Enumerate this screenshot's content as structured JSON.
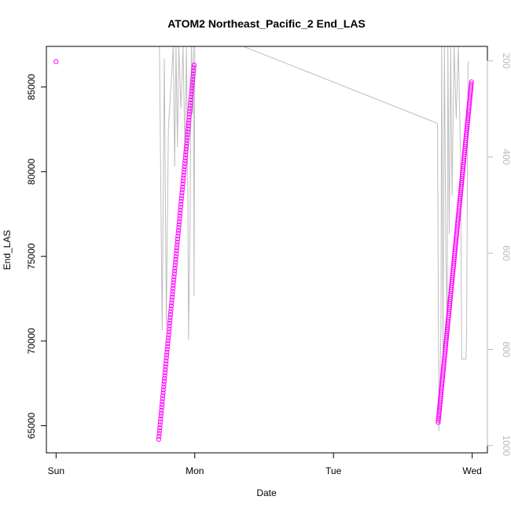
{
  "chart_data": {
    "type": "scatter",
    "title": "ATOM2 Northeast_Pacific_2 End_LAS",
    "xlabel": "Date",
    "ylabel": "End_LAS",
    "x_ticks": [
      "Sun",
      "Mon",
      "Tue",
      "Wed"
    ],
    "xlim_days": [
      -0.07,
      3.11
    ],
    "ylim": [
      63400,
      87400
    ],
    "y_ticks": [
      65000,
      70000,
      75000,
      80000,
      85000
    ],
    "y2_ticks": [
      200,
      400,
      600,
      800,
      1000
    ],
    "y2lim": [
      170,
      1015
    ],
    "grid": false,
    "colors": {
      "points": "#ff00ff",
      "secondary_line": "#bebebe",
      "axes": "#000000",
      "secondary_axis": "#b8b8b8"
    },
    "series": [
      {
        "kind": "points",
        "axis": "left",
        "segments": [
          {
            "x_start": 0.0,
            "x_end": 0.0,
            "y_start": 86500,
            "y_end": 86500,
            "n": 1
          },
          {
            "x_start": 0.74,
            "x_end": 0.995,
            "y_start": 64200,
            "y_end": 86300,
            "n": 130
          },
          {
            "x_start": 2.755,
            "x_end": 2.995,
            "y_start": 65200,
            "y_end": 85300,
            "n": 170
          }
        ]
      },
      {
        "kind": "line",
        "axis": "right",
        "points": [
          [
            0.745,
            170
          ],
          [
            0.765,
            760
          ],
          [
            0.78,
            195
          ],
          [
            0.795,
            750
          ],
          [
            0.81,
            340
          ],
          [
            0.845,
            170
          ],
          [
            0.855,
            420
          ],
          [
            0.865,
            170
          ],
          [
            0.875,
            380
          ],
          [
            0.885,
            170
          ],
          [
            0.9,
            300
          ],
          [
            0.915,
            170
          ],
          [
            0.93,
            400
          ],
          [
            0.94,
            170
          ],
          [
            0.95,
            470
          ],
          [
            0.955,
            780
          ],
          [
            0.965,
            550
          ],
          [
            0.975,
            170
          ],
          [
            0.985,
            310
          ],
          [
            0.99,
            170
          ],
          [
            0.995,
            690
          ],
          [
            1.0,
            170
          ],
          [
            1.35,
            170
          ],
          [
            2.75,
            330
          ],
          [
            2.76,
            970
          ],
          [
            2.775,
            760
          ],
          [
            2.78,
            170
          ],
          [
            2.79,
            800
          ],
          [
            2.8,
            170
          ],
          [
            2.81,
            590
          ],
          [
            2.82,
            780
          ],
          [
            2.825,
            170
          ],
          [
            2.835,
            560
          ],
          [
            2.845,
            170
          ],
          [
            2.855,
            480
          ],
          [
            2.87,
            170
          ],
          [
            2.885,
            320
          ],
          [
            2.9,
            170
          ],
          [
            2.915,
            380
          ],
          [
            2.925,
            820
          ],
          [
            2.955,
            820
          ],
          [
            2.96,
            770
          ],
          [
            2.97,
            210
          ],
          [
            2.975,
            200
          ]
        ]
      }
    ]
  }
}
